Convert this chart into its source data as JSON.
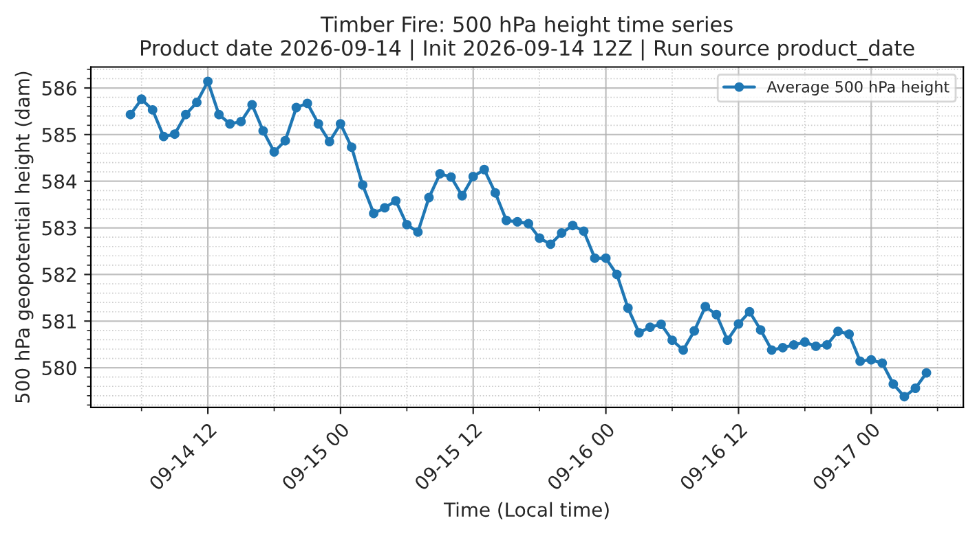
{
  "chart_data": {
    "type": "line",
    "title": "Timber Fire: 500 hPa height time series\nProduct date 2026-09-14 | Init 2026-09-14 12Z | Run source product_date",
    "xlabel": "Time (Local time)",
    "ylabel": "500 hPa geopotential height (dam)",
    "x": [
      "2026-09-14T05:00",
      "2026-09-14T06:00",
      "2026-09-14T07:00",
      "2026-09-14T08:00",
      "2026-09-14T09:00",
      "2026-09-14T10:00",
      "2026-09-14T11:00",
      "2026-09-14T12:00",
      "2026-09-14T13:00",
      "2026-09-14T14:00",
      "2026-09-14T15:00",
      "2026-09-14T16:00",
      "2026-09-14T17:00",
      "2026-09-14T18:00",
      "2026-09-14T19:00",
      "2026-09-14T20:00",
      "2026-09-14T21:00",
      "2026-09-14T22:00",
      "2026-09-14T23:00",
      "2026-09-15T00:00",
      "2026-09-15T01:00",
      "2026-09-15T02:00",
      "2026-09-15T03:00",
      "2026-09-15T04:00",
      "2026-09-15T05:00",
      "2026-09-15T06:00",
      "2026-09-15T07:00",
      "2026-09-15T08:00",
      "2026-09-15T09:00",
      "2026-09-15T10:00",
      "2026-09-15T11:00",
      "2026-09-15T12:00",
      "2026-09-15T13:00",
      "2026-09-15T14:00",
      "2026-09-15T15:00",
      "2026-09-15T16:00",
      "2026-09-15T17:00",
      "2026-09-15T18:00",
      "2026-09-15T19:00",
      "2026-09-15T20:00",
      "2026-09-15T21:00",
      "2026-09-15T22:00",
      "2026-09-15T23:00",
      "2026-09-16T00:00",
      "2026-09-16T01:00",
      "2026-09-16T02:00",
      "2026-09-16T03:00",
      "2026-09-16T04:00",
      "2026-09-16T05:00",
      "2026-09-16T06:00",
      "2026-09-16T07:00",
      "2026-09-16T08:00",
      "2026-09-16T09:00",
      "2026-09-16T10:00",
      "2026-09-16T11:00",
      "2026-09-16T12:00",
      "2026-09-16T13:00",
      "2026-09-16T14:00",
      "2026-09-16T15:00",
      "2026-09-16T16:00",
      "2026-09-16T17:00",
      "2026-09-16T18:00",
      "2026-09-16T19:00",
      "2026-09-16T20:00",
      "2026-09-16T21:00",
      "2026-09-16T22:00",
      "2026-09-16T23:00",
      "2026-09-17T00:00",
      "2026-09-17T01:00",
      "2026-09-17T02:00",
      "2026-09-17T03:00",
      "2026-09-17T04:00",
      "2026-09-17T05:00"
    ],
    "series": [
      {
        "name": "Average 500 hPa height",
        "color": "#1f77b4",
        "values": [
          585.43,
          585.76,
          585.53,
          584.96,
          585.01,
          585.43,
          585.69,
          586.14,
          585.43,
          585.23,
          585.28,
          585.64,
          585.08,
          584.63,
          584.87,
          585.58,
          585.67,
          585.23,
          584.85,
          585.23,
          584.73,
          583.92,
          583.31,
          583.43,
          583.58,
          583.07,
          582.91,
          583.65,
          584.16,
          584.09,
          583.69,
          584.1,
          584.25,
          583.75,
          583.16,
          583.13,
          583.09,
          582.78,
          582.65,
          582.89,
          583.05,
          582.93,
          582.35,
          582.35,
          582.0,
          581.28,
          580.75,
          580.87,
          580.93,
          580.59,
          580.38,
          580.79,
          581.31,
          581.14,
          580.59,
          580.94,
          581.2,
          580.81,
          580.38,
          580.43,
          580.49,
          580.55,
          580.46,
          580.49,
          580.78,
          580.72,
          580.14,
          580.17,
          580.1,
          579.65,
          579.38,
          579.56,
          579.89
        ]
      }
    ],
    "xlim": [
      "2026-09-14T01:25",
      "2026-09-17T08:20"
    ],
    "xticks": [
      {
        "value": "2026-09-14T12:00",
        "label": "09-14 12"
      },
      {
        "value": "2026-09-15T00:00",
        "label": "09-15 00"
      },
      {
        "value": "2026-09-15T12:00",
        "label": "09-15 12"
      },
      {
        "value": "2026-09-16T00:00",
        "label": "09-16 00"
      },
      {
        "value": "2026-09-16T12:00",
        "label": "09-16 12"
      },
      {
        "value": "2026-09-17T00:00",
        "label": "09-17 00"
      }
    ],
    "ylim": [
      579.15,
      586.45
    ],
    "yticks": [
      580,
      581,
      582,
      583,
      584,
      585,
      586
    ],
    "grid": true,
    "legend": "top right",
    "marker": "circle",
    "line_style": "solid"
  }
}
